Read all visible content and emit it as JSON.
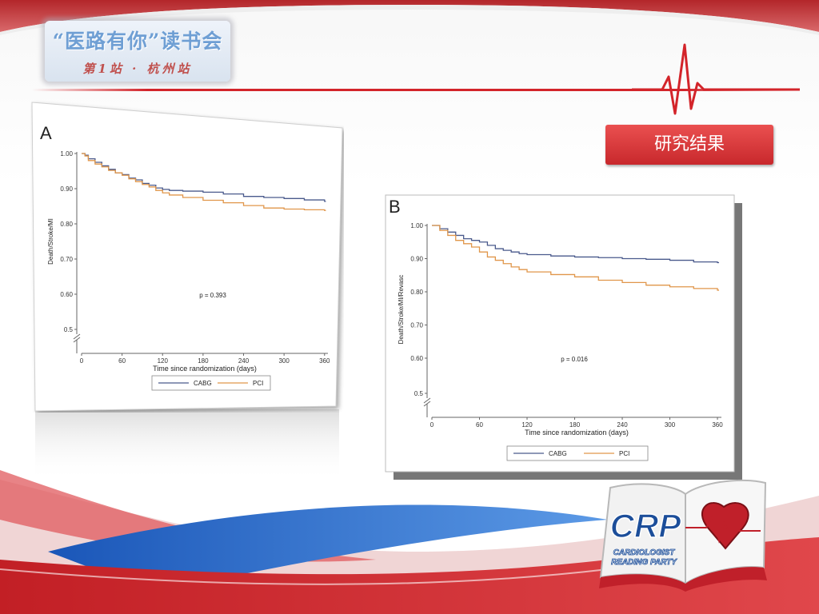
{
  "slide": {
    "title": "“医路有你”读书会",
    "subtitle": "第1站 · 杭州站",
    "section_label": "研究结果",
    "colors": {
      "cabg": "#4a5a8c",
      "pci": "#e0964a",
      "accent_red": "#d3242a"
    }
  },
  "logo": {
    "name": "CRP",
    "tagline_line1": "CARDIOLOGIST",
    "tagline_line2": "READING PARTY"
  },
  "chart_data": [
    {
      "type": "line",
      "panel_label": "A",
      "xlabel": "Time since randomization (days)",
      "ylabel": "Death/Stroke/MI",
      "xlim": [
        0,
        365
      ],
      "ylim": [
        0.5,
        1.0
      ],
      "xticks": [
        0,
        60,
        120,
        180,
        240,
        300,
        360
      ],
      "yticks": [
        0.5,
        0.6,
        0.7,
        0.8,
        0.9,
        1.0
      ],
      "ytick_labels": [
        "0.5",
        "0.60",
        "0.70",
        "0.80",
        "0.90",
        "1.00"
      ],
      "annotation": "p = 0.393",
      "legend": [
        "CABG",
        "PCI"
      ],
      "series": [
        {
          "name": "CABG",
          "x": [
            0,
            5,
            10,
            20,
            30,
            40,
            50,
            60,
            70,
            80,
            90,
            100,
            110,
            120,
            130,
            150,
            180,
            210,
            240,
            270,
            300,
            330,
            360
          ],
          "y": [
            1.0,
            0.995,
            0.985,
            0.975,
            0.965,
            0.955,
            0.945,
            0.94,
            0.93,
            0.925,
            0.915,
            0.91,
            0.902,
            0.898,
            0.895,
            0.893,
            0.89,
            0.885,
            0.878,
            0.875,
            0.872,
            0.868,
            0.864
          ]
        },
        {
          "name": "PCI",
          "x": [
            0,
            5,
            10,
            20,
            30,
            40,
            50,
            60,
            70,
            80,
            90,
            100,
            110,
            120,
            130,
            150,
            180,
            210,
            240,
            270,
            300,
            330,
            360
          ],
          "y": [
            1.0,
            0.993,
            0.98,
            0.97,
            0.962,
            0.952,
            0.945,
            0.938,
            0.928,
            0.92,
            0.912,
            0.905,
            0.895,
            0.888,
            0.882,
            0.875,
            0.867,
            0.86,
            0.852,
            0.845,
            0.842,
            0.84,
            0.838
          ]
        }
      ]
    },
    {
      "type": "line",
      "panel_label": "B",
      "xlabel": "Time since randomization (days)",
      "ylabel": "Death/Stroke/MI/Revasc",
      "xlim": [
        0,
        365
      ],
      "ylim": [
        0.5,
        1.0
      ],
      "xticks": [
        0,
        60,
        120,
        180,
        240,
        300,
        360
      ],
      "yticks": [
        0.5,
        0.6,
        0.7,
        0.8,
        0.9,
        1.0
      ],
      "ytick_labels": [
        "0.5",
        "0.60",
        "0.70",
        "0.80",
        "0.90",
        "1.00"
      ],
      "annotation": "p = 0.016",
      "legend": [
        "CABG",
        "PCI"
      ],
      "series": [
        {
          "name": "CABG",
          "x": [
            0,
            10,
            20,
            30,
            40,
            50,
            60,
            70,
            80,
            90,
            100,
            110,
            120,
            150,
            180,
            210,
            240,
            270,
            300,
            330,
            360
          ],
          "y": [
            1.0,
            0.99,
            0.98,
            0.97,
            0.96,
            0.955,
            0.95,
            0.94,
            0.93,
            0.925,
            0.92,
            0.915,
            0.912,
            0.908,
            0.905,
            0.903,
            0.9,
            0.898,
            0.895,
            0.89,
            0.888
          ]
        },
        {
          "name": "PCI",
          "x": [
            0,
            10,
            20,
            30,
            40,
            50,
            60,
            70,
            80,
            90,
            100,
            110,
            120,
            150,
            180,
            210,
            240,
            270,
            300,
            330,
            360
          ],
          "y": [
            1.0,
            0.985,
            0.97,
            0.955,
            0.945,
            0.935,
            0.92,
            0.905,
            0.895,
            0.885,
            0.875,
            0.867,
            0.86,
            0.852,
            0.845,
            0.835,
            0.828,
            0.82,
            0.815,
            0.81,
            0.805
          ]
        }
      ]
    }
  ]
}
